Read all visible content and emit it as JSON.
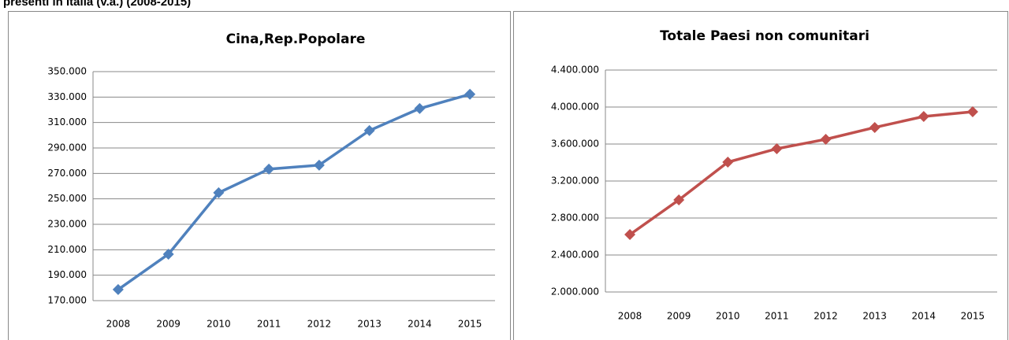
{
  "header": {
    "title": "presenti in Italia  (v.a.) (2008-2015)"
  },
  "chart_data": [
    {
      "type": "line",
      "title": "Cina,Rep.Popolare",
      "categories": [
        "2008",
        "2009",
        "2010",
        "2011",
        "2012",
        "2013",
        "2014",
        "2015"
      ],
      "series": [
        {
          "name": "Cina,Rep.Popolare",
          "color": "#4f81bd",
          "values": [
            178700,
            206500,
            254800,
            273400,
            276500,
            303700,
            321000,
            332200
          ]
        }
      ],
      "ylim": [
        170000,
        350000
      ],
      "yticks": [
        {
          "value": 170000,
          "label": "170.000"
        },
        {
          "value": 190000,
          "label": "190.000"
        },
        {
          "value": 210000,
          "label": "210.000"
        },
        {
          "value": 230000,
          "label": "230.000"
        },
        {
          "value": 250000,
          "label": "250.000"
        },
        {
          "value": 270000,
          "label": "270.000"
        },
        {
          "value": 290000,
          "label": "290.000"
        },
        {
          "value": 310000,
          "label": "310.000"
        },
        {
          "value": 330000,
          "label": "330.000"
        },
        {
          "value": 350000,
          "label": "350.000"
        }
      ],
      "grid": true
    },
    {
      "type": "line",
      "title": "Totale Paesi non comunitari",
      "categories": [
        "2008",
        "2009",
        "2010",
        "2011",
        "2012",
        "2013",
        "2014",
        "2015"
      ],
      "series": [
        {
          "name": "Totale Paesi non comunitari",
          "color": "#c0504d",
          "values": [
            2621000,
            2996000,
            3404000,
            3549000,
            3651000,
            3779000,
            3898000,
            3949000
          ]
        }
      ],
      "ylim": [
        2000000,
        4400000
      ],
      "yticks": [
        {
          "value": 2000000,
          "label": "2.000.000"
        },
        {
          "value": 2400000,
          "label": "2.400.000"
        },
        {
          "value": 2800000,
          "label": "2.800.000"
        },
        {
          "value": 3200000,
          "label": "3.200.000"
        },
        {
          "value": 3600000,
          "label": "3.600.000"
        },
        {
          "value": 4000000,
          "label": "4.000.000"
        },
        {
          "value": 4400000,
          "label": "4.400.000"
        }
      ],
      "grid": true
    }
  ]
}
